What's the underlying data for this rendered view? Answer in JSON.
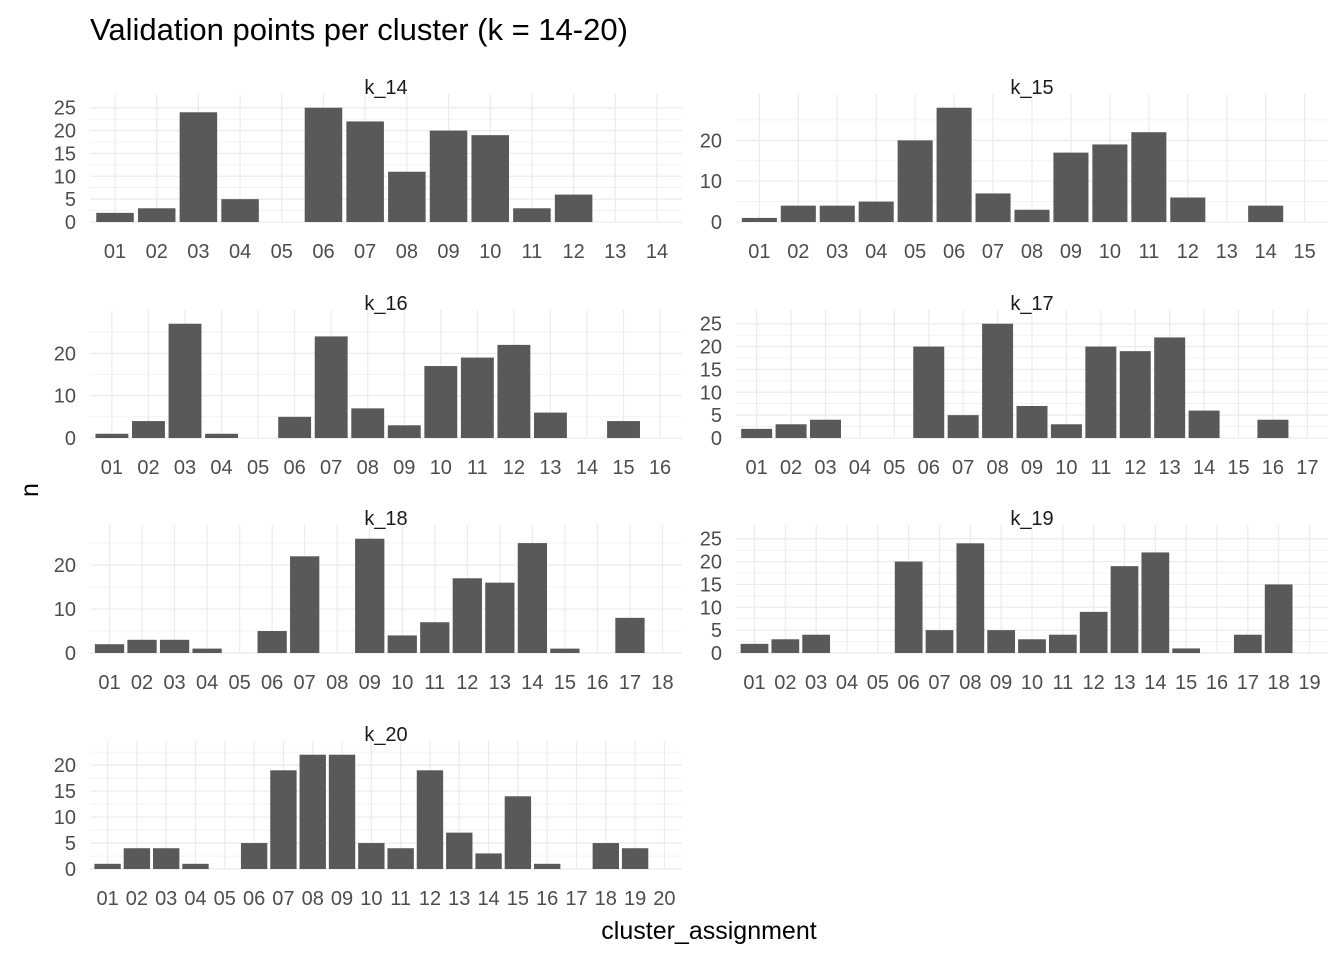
{
  "chart_data": {
    "type": "bar",
    "title": "Validation points per cluster (k = 14-20)",
    "xlabel": "cluster_assignment",
    "ylabel": "n",
    "grid": true,
    "legend": "none",
    "bar_color": "#595959",
    "grid_color": "#ebebeb",
    "facets": [
      {
        "name": "k_14",
        "categories": [
          "01",
          "02",
          "03",
          "04",
          "05",
          "06",
          "07",
          "08",
          "09",
          "10",
          "11",
          "12",
          "13",
          "14"
        ],
        "values": [
          2,
          3,
          24,
          5,
          0,
          25,
          22,
          11,
          20,
          19,
          3,
          6,
          0,
          0
        ],
        "yticks": [
          0,
          5,
          10,
          15,
          20,
          25
        ],
        "ylim": [
          0,
          25
        ]
      },
      {
        "name": "k_15",
        "categories": [
          "01",
          "02",
          "03",
          "04",
          "05",
          "06",
          "07",
          "08",
          "09",
          "10",
          "11",
          "12",
          "13",
          "14",
          "15"
        ],
        "values": [
          1,
          4,
          4,
          5,
          20,
          28,
          7,
          3,
          17,
          19,
          22,
          6,
          0,
          4,
          0
        ],
        "yticks": [
          0,
          10,
          20
        ],
        "ylim": [
          0,
          28
        ]
      },
      {
        "name": "k_16",
        "categories": [
          "01",
          "02",
          "03",
          "04",
          "05",
          "06",
          "07",
          "08",
          "09",
          "10",
          "11",
          "12",
          "13",
          "14",
          "15",
          "16"
        ],
        "values": [
          1,
          4,
          27,
          1,
          0,
          5,
          24,
          7,
          3,
          17,
          19,
          22,
          6,
          0,
          4,
          0
        ],
        "yticks": [
          0,
          10,
          20
        ],
        "ylim": [
          0,
          27
        ]
      },
      {
        "name": "k_17",
        "categories": [
          "01",
          "02",
          "03",
          "04",
          "05",
          "06",
          "07",
          "08",
          "09",
          "10",
          "11",
          "12",
          "13",
          "14",
          "15",
          "16",
          "17"
        ],
        "values": [
          2,
          3,
          4,
          0,
          0,
          20,
          5,
          25,
          7,
          3,
          20,
          19,
          22,
          6,
          0,
          4,
          0
        ],
        "yticks": [
          0,
          5,
          10,
          15,
          20,
          25
        ],
        "ylim": [
          0,
          25
        ]
      },
      {
        "name": "k_18",
        "categories": [
          "01",
          "02",
          "03",
          "04",
          "05",
          "06",
          "07",
          "08",
          "09",
          "10",
          "11",
          "12",
          "13",
          "14",
          "15",
          "16",
          "17",
          "18"
        ],
        "values": [
          2,
          3,
          3,
          1,
          0,
          5,
          22,
          0,
          26,
          4,
          7,
          17,
          16,
          25,
          1,
          0,
          8,
          0
        ],
        "yticks": [
          0,
          10,
          20
        ],
        "ylim": [
          0,
          26
        ]
      },
      {
        "name": "k_19",
        "categories": [
          "01",
          "02",
          "03",
          "04",
          "05",
          "06",
          "07",
          "08",
          "09",
          "10",
          "11",
          "12",
          "13",
          "14",
          "15",
          "16",
          "17",
          "18",
          "19"
        ],
        "values": [
          2,
          3,
          4,
          0,
          0,
          20,
          5,
          24,
          5,
          3,
          4,
          9,
          19,
          22,
          1,
          0,
          4,
          15,
          0
        ],
        "yticks": [
          0,
          5,
          10,
          15,
          20,
          25
        ],
        "ylim": [
          0,
          25
        ]
      },
      {
        "name": "k_20",
        "categories": [
          "01",
          "02",
          "03",
          "04",
          "05",
          "06",
          "07",
          "08",
          "09",
          "10",
          "11",
          "12",
          "13",
          "14",
          "15",
          "16",
          "17",
          "18",
          "19",
          "20"
        ],
        "values": [
          1,
          4,
          4,
          1,
          0,
          5,
          19,
          22,
          22,
          5,
          4,
          19,
          7,
          3,
          14,
          1,
          0,
          5,
          4,
          0
        ],
        "yticks": [
          0,
          5,
          10,
          15,
          20
        ],
        "ylim": [
          0,
          22
        ]
      }
    ]
  }
}
